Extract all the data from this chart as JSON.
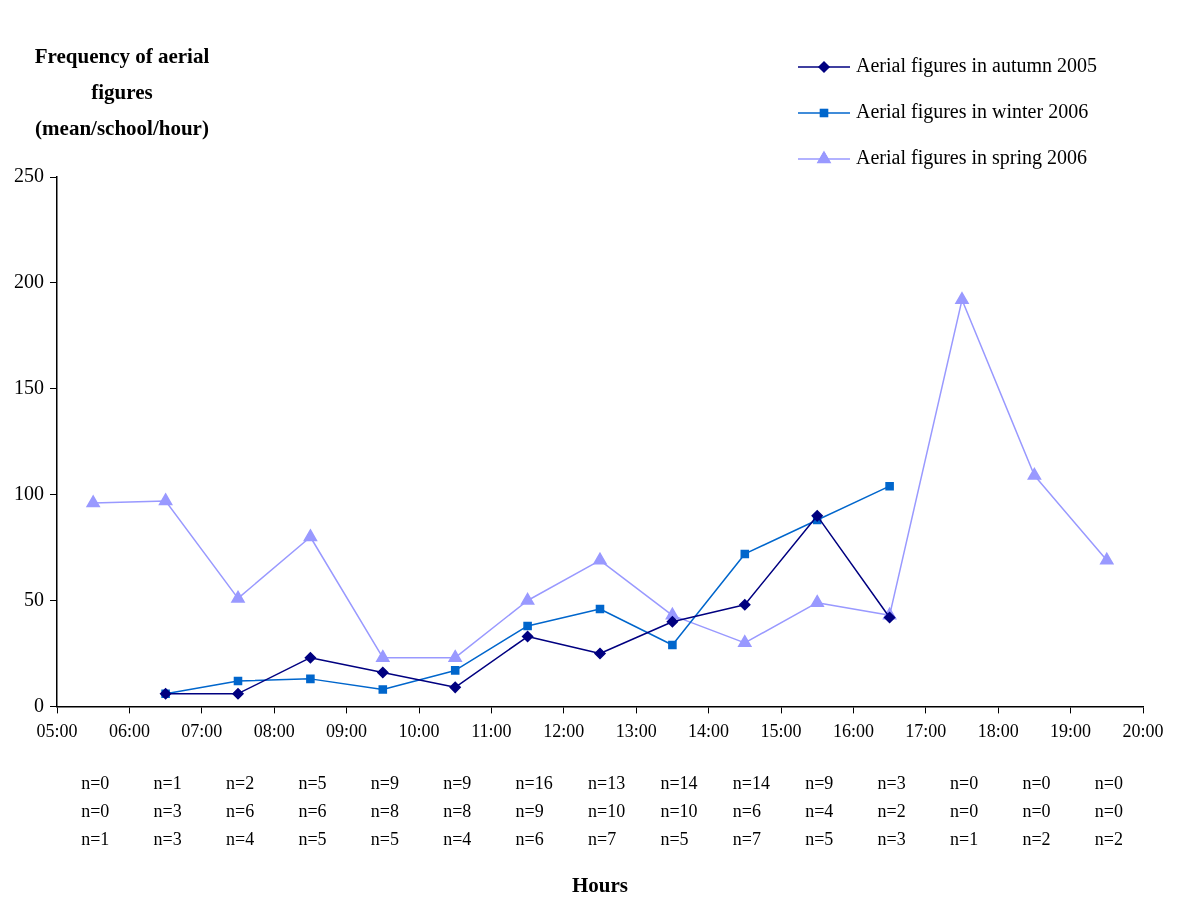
{
  "chart_data": {
    "type": "line",
    "ylabel": "Frequency of aerial figures (mean/school/hour)",
    "x": [
      5.5,
      6.5,
      7.5,
      8.5,
      9.5,
      10.5,
      11.5,
      12.5,
      13.5,
      14.5,
      15.5,
      16.5,
      17.5,
      18.5,
      19.5
    ],
    "series": [
      {
        "name": "Aerial figures in autumn 2005",
        "color": "#000080",
        "marker": "diamond",
        "values": [
          null,
          6,
          6,
          23,
          16,
          9,
          33,
          25,
          40,
          48,
          90,
          42,
          null,
          null,
          null
        ]
      },
      {
        "name": "Aerial figures in winter 2006",
        "color": "#0066cc",
        "marker": "square",
        "values": [
          null,
          6,
          12,
          13,
          8,
          17,
          38,
          46,
          29,
          72,
          88,
          104,
          null,
          null,
          null
        ]
      },
      {
        "name": "Aerial figures in spring 2006",
        "color": "#9999ff",
        "marker": "triangle",
        "values": [
          96,
          97,
          51,
          80,
          23,
          23,
          50,
          69,
          43,
          30,
          49,
          43,
          192,
          109,
          69
        ]
      }
    ],
    "xlim": [
      5,
      20
    ],
    "xticks": [
      {
        "value": 5,
        "label": "05:00"
      },
      {
        "value": 6,
        "label": "06:00"
      },
      {
        "value": 7,
        "label": "07:00"
      },
      {
        "value": 8,
        "label": "08:00"
      },
      {
        "value": 9,
        "label": "09:00"
      },
      {
        "value": 10,
        "label": "10:00"
      },
      {
        "value": 11,
        "label": "11:00"
      },
      {
        "value": 12,
        "label": "12:00"
      },
      {
        "value": 13,
        "label": "13:00"
      },
      {
        "value": 14,
        "label": "14:00"
      },
      {
        "value": 15,
        "label": "15:00"
      },
      {
        "value": 16,
        "label": "16:00"
      },
      {
        "value": 17,
        "label": "17:00"
      },
      {
        "value": 18,
        "label": "18:00"
      },
      {
        "value": 19,
        "label": "19:00"
      },
      {
        "value": 20,
        "label": "20:00"
      }
    ],
    "ylim": [
      0,
      250
    ],
    "yticks": [
      0,
      50,
      100,
      150,
      200,
      250
    ],
    "grid": false,
    "legend": "top right",
    "line_style": "solid",
    "annotations": [
      "n=0",
      "n=1",
      "n=2",
      "n=5",
      "n=9",
      "n=9",
      "n=16",
      "n=13",
      "n=14",
      "n=14",
      "n=9",
      "n=3",
      "n=0",
      "n=0",
      "n=0",
      "n=0",
      "n=3",
      "n=6",
      "n=6",
      "n=8",
      "n=8",
      "n=9",
      "n=10",
      "n=10",
      "n=6",
      "n=4",
      "n=2",
      "n=0",
      "n=0",
      "n=0",
      "n=1",
      "n=3",
      "n=4",
      "n=5",
      "n=5",
      "n=4",
      "n=6",
      "n=7",
      "n=5",
      "n=7",
      "n=5",
      "n=3",
      "n=1",
      "n=2",
      "n=2",
      "Hours"
    ]
  }
}
